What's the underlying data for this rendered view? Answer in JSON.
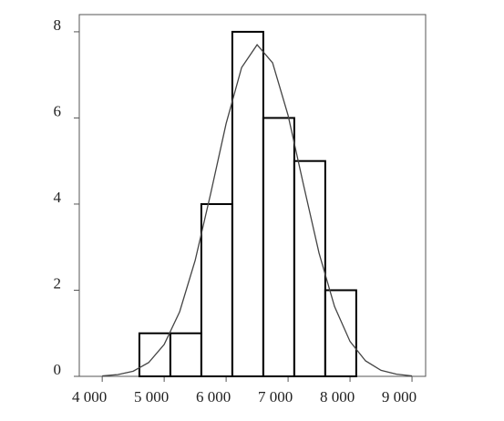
{
  "chart_data": {
    "type": "histogram",
    "bins": [
      4600,
      5100,
      5600,
      6100,
      6600,
      7100,
      7600,
      8100
    ],
    "counts": [
      1,
      1,
      4,
      8,
      6,
      5,
      2
    ],
    "curve": {
      "x": [
        4000,
        4250,
        4500,
        4750,
        5000,
        5250,
        5500,
        5750,
        6000,
        6250,
        6500,
        6750,
        7000,
        7250,
        7500,
        7750,
        8000,
        8250,
        8500,
        8750,
        9000
      ],
      "y": [
        0.01,
        0.04,
        0.12,
        0.32,
        0.74,
        1.5,
        2.69,
        4.24,
        5.87,
        7.17,
        7.7,
        7.28,
        6.06,
        4.44,
        2.86,
        1.62,
        0.81,
        0.36,
        0.14,
        0.05,
        0.01
      ]
    },
    "color": "#000000",
    "xlim": [
      3630,
      9220
    ],
    "xticks": [
      {
        "value": 4000,
        "label": "4 000"
      },
      {
        "value": 5000,
        "label": "5 000"
      },
      {
        "value": 6000,
        "label": "6 000"
      },
      {
        "value": 7000,
        "label": "7 000"
      },
      {
        "value": 8000,
        "label": "8 000"
      },
      {
        "value": 9000,
        "label": "9 000"
      }
    ],
    "ylim": [
      0,
      8.4
    ],
    "yticks": [
      0,
      2,
      4,
      6,
      8
    ]
  }
}
